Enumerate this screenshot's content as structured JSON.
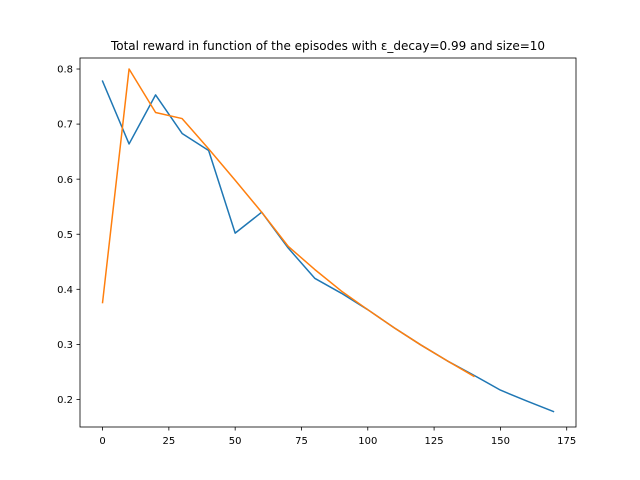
{
  "chart_data": {
    "type": "line",
    "title": "Total reward in function of the episodes with ε_decay=0.99 and size=10",
    "xlabel": "",
    "ylabel": "",
    "xlim": [
      -8.5,
      178.5
    ],
    "ylim": [
      0.15,
      0.82
    ],
    "xticks": [
      0,
      25,
      50,
      75,
      100,
      125,
      150,
      175
    ],
    "yticks": [
      0.2,
      0.3,
      0.4,
      0.5,
      0.6,
      0.7,
      0.8
    ],
    "xtick_labels": [
      "0",
      "25",
      "50",
      "75",
      "100",
      "125",
      "150",
      "175"
    ],
    "ytick_labels": [
      "0.2",
      "0.3",
      "0.4",
      "0.5",
      "0.6",
      "0.7",
      "0.8"
    ],
    "grid": false,
    "legend": "none",
    "series": [
      {
        "color": "#1f77b4",
        "x": [
          0,
          10,
          20,
          30,
          40,
          50,
          60,
          70,
          80,
          90,
          100,
          110,
          120,
          130,
          140,
          150,
          160,
          170
        ],
        "y": [
          0.778,
          0.664,
          0.753,
          0.683,
          0.652,
          0.502,
          0.54,
          0.475,
          0.42,
          0.393,
          0.363,
          0.33,
          0.299,
          0.27,
          0.244,
          0.217,
          0.197,
          0.178
        ]
      },
      {
        "color": "#ff7f0e",
        "x": [
          0,
          10,
          20,
          30,
          40,
          50,
          60,
          70,
          80,
          90,
          100,
          110,
          120,
          130,
          140
        ],
        "y": [
          0.376,
          0.8,
          0.721,
          0.71,
          0.655,
          0.598,
          0.54,
          0.478,
          0.436,
          0.397,
          0.363,
          0.33,
          0.299,
          0.27,
          0.242
        ]
      }
    ]
  }
}
